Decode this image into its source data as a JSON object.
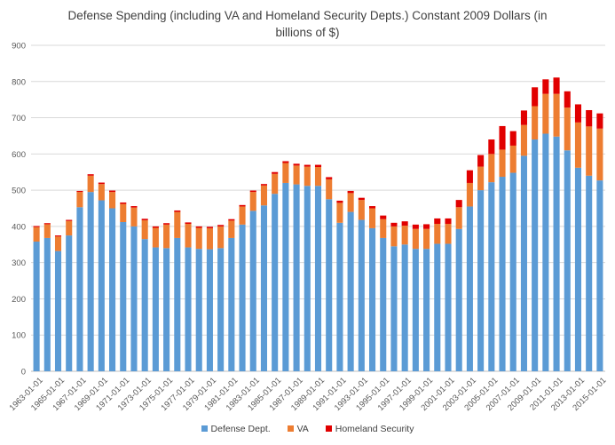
{
  "chart_data": {
    "type": "bar",
    "stacked": true,
    "title_line1": "Defense Spending (including VA and Homeland Security Depts.) Constant 2009 Dollars (in",
    "title_line2": "billions of $)",
    "ylim": [
      0,
      900
    ],
    "yticks": [
      0,
      100,
      200,
      300,
      400,
      500,
      600,
      700,
      800,
      900
    ],
    "grid": true,
    "legend_position": "bottom",
    "categories": [
      "1963-01-01",
      "1964-01-01",
      "1965-01-01",
      "1966-01-01",
      "1967-01-01",
      "1968-01-01",
      "1969-01-01",
      "1970-01-01",
      "1971-01-01",
      "1972-01-01",
      "1973-01-01",
      "1974-01-01",
      "1975-01-01",
      "1976-01-01",
      "1977-01-01",
      "1978-01-01",
      "1979-01-01",
      "1980-01-01",
      "1981-01-01",
      "1982-01-01",
      "1983-01-01",
      "1984-01-01",
      "1985-01-01",
      "1986-01-01",
      "1987-01-01",
      "1988-01-01",
      "1989-01-01",
      "1990-01-01",
      "1991-01-01",
      "1992-01-01",
      "1993-01-01",
      "1994-01-01",
      "1995-01-01",
      "1996-01-01",
      "1997-01-01",
      "1998-01-01",
      "1999-01-01",
      "2000-01-01",
      "2001-01-01",
      "2002-01-01",
      "2003-01-01",
      "2004-01-01",
      "2005-01-01",
      "2006-01-01",
      "2007-01-01",
      "2008-01-01",
      "2009-01-01",
      "2010-01-01",
      "2011-01-01",
      "2012-01-01",
      "2013-01-01",
      "2014-01-01",
      "2015-01-01"
    ],
    "x_tick_labels": [
      "1963-01-01",
      "",
      "1965-01-01",
      "",
      "1967-01-01",
      "",
      "1969-01-01",
      "",
      "1971-01-01",
      "",
      "1973-01-01",
      "",
      "1975-01-01",
      "",
      "1977-01-01",
      "",
      "1979-01-01",
      "",
      "1981-01-01",
      "",
      "1983-01-01",
      "",
      "1985-01-01",
      "",
      "1987-01-01",
      "",
      "1989-01-01",
      "",
      "1991-01-01",
      "",
      "1993-01-01",
      "",
      "1995-01-01",
      "",
      "1997-01-01",
      "",
      "1999-01-01",
      "",
      "2001-01-01",
      "",
      "2003-01-01",
      "",
      "2005-01-01",
      "",
      "2007-01-01",
      "",
      "2009-01-01",
      "",
      "2011-01-01",
      "",
      "2013-01-01",
      "",
      "2015-01-01"
    ],
    "series": [
      {
        "name": "Defense Dept.",
        "color": "#5B9BD5",
        "values": [
          358,
          368,
          332,
          375,
          453,
          495,
          472,
          450,
          412,
          400,
          365,
          342,
          340,
          368,
          342,
          338,
          337,
          340,
          368,
          405,
          443,
          458,
          490,
          520,
          516,
          512,
          512,
          475,
          410,
          440,
          418,
          395,
          368,
          345,
          350,
          338,
          338,
          352,
          352,
          393,
          455,
          500,
          522,
          537,
          548,
          595,
          640,
          656,
          648,
          610,
          562,
          540,
          527
        ]
      },
      {
        "name": "VA",
        "color": "#ED7D31",
        "values": [
          40,
          38,
          40,
          40,
          42,
          45,
          45,
          45,
          50,
          52,
          52,
          54,
          65,
          72,
          65,
          58,
          58,
          60,
          48,
          50,
          52,
          55,
          55,
          55,
          52,
          53,
          52,
          55,
          55,
          52,
          55,
          55,
          52,
          55,
          52,
          55,
          55,
          55,
          55,
          60,
          65,
          65,
          78,
          75,
          75,
          85,
          92,
          110,
          118,
          118,
          125,
          136,
          143
        ]
      },
      {
        "name": "Homeland Security",
        "color": "#E10000",
        "values": [
          3,
          3,
          3,
          3,
          3,
          4,
          4,
          4,
          4,
          4,
          4,
          4,
          4,
          4,
          4,
          4,
          4,
          4,
          4,
          4,
          4,
          4,
          5,
          5,
          5,
          5,
          6,
          6,
          6,
          6,
          6,
          6,
          10,
          10,
          12,
          12,
          13,
          15,
          15,
          20,
          35,
          32,
          40,
          65,
          40,
          40,
          52,
          40,
          45,
          45,
          50,
          45,
          42
        ]
      }
    ]
  }
}
